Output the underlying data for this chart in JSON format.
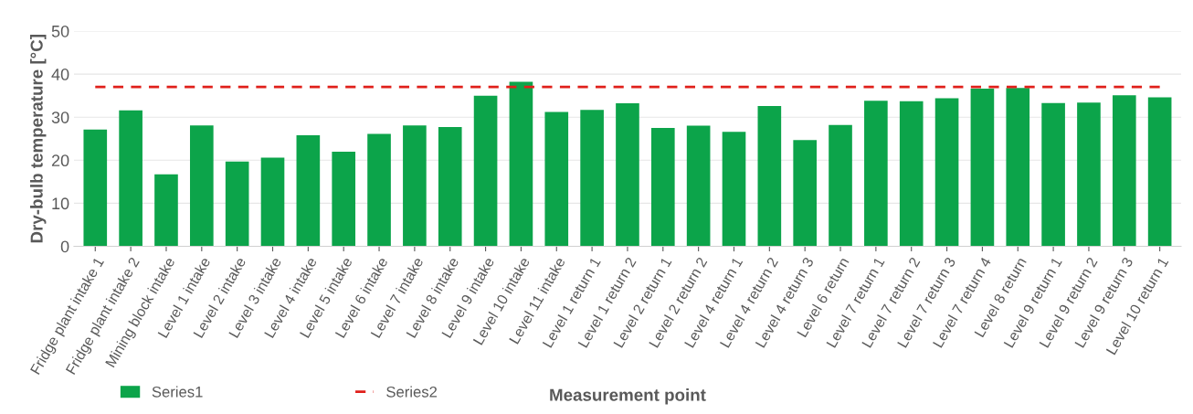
{
  "chart_data": {
    "type": "bar",
    "xlabel": "Measurement point",
    "ylabel": "Dry-bulb temperature [°C]",
    "categories": [
      "Fridge plant intake 1",
      "Fridge plant intake 2",
      "Mining block intake",
      "Level 1 intake",
      "Level 2 intake",
      "Level 3 intake",
      "Level 4 intake",
      "Level 5 intake",
      "Level 6 intake",
      "Level 7 intake",
      "Level 8 intake",
      "Level 9 intake",
      "Level 10 intake",
      "Level 11 intake",
      "Level 1 return 1",
      "Level 1 return 2",
      "Level 2 return 1",
      "Level 2 return 2",
      "Level 4 return 1",
      "Level 4 return 2",
      "Level 4 return 3",
      "Level 6 return",
      "Level 7 return 1",
      "Level 7 return 2",
      "Level 7 return 3",
      "Level 7 return 4",
      "Level 8 return",
      "Level 9 return 1",
      "Level 9 return 2",
      "Level 9 return 3",
      "Level 10 return 1"
    ],
    "series": [
      {
        "name": "Series1",
        "color": "#0ca44a",
        "values": [
          27.1,
          31.6,
          16.7,
          28.1,
          19.7,
          20.6,
          25.8,
          22.0,
          26.1,
          28.1,
          27.7,
          35.0,
          38.2,
          31.2,
          31.7,
          33.2,
          27.5,
          28.0,
          26.6,
          32.6,
          24.7,
          28.2,
          33.8,
          33.7,
          34.4,
          36.6,
          36.8,
          33.3,
          33.4,
          35.1,
          34.6
        ]
      },
      {
        "name": "Series2",
        "type": "line",
        "color": "#e0201b",
        "line_style": "dashed",
        "marker": "none",
        "values": [
          37,
          37,
          37,
          37,
          37,
          37,
          37,
          37,
          37,
          37,
          37,
          37,
          37,
          37,
          37,
          37,
          37,
          37,
          37,
          37,
          37,
          37,
          37,
          37,
          37,
          37,
          37,
          37,
          37,
          37,
          37
        ]
      }
    ],
    "ylim": [
      0,
      50
    ],
    "yticks": [
      0,
      10,
      20,
      30,
      40,
      50
    ],
    "grid": "y",
    "legend": "bottom left"
  }
}
